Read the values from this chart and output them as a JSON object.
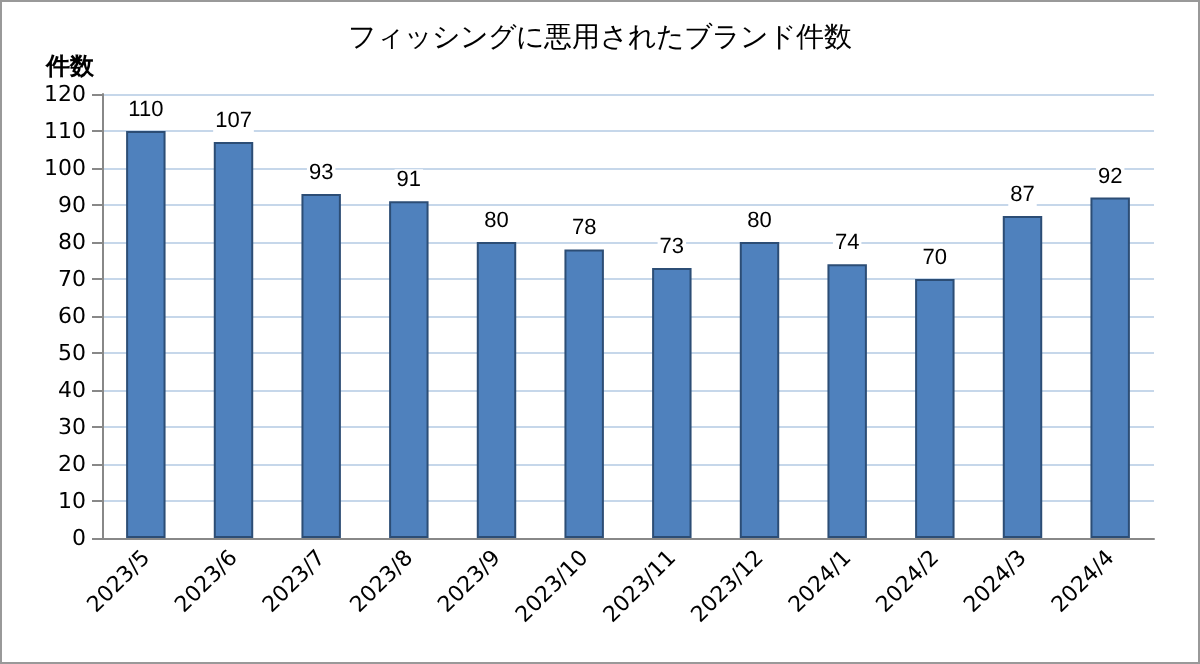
{
  "chart_data": {
    "type": "bar",
    "title": "フィッシングに悪用されたブランド件数",
    "ylabel": "件数",
    "categories": [
      "2023/5",
      "2023/6",
      "2023/7",
      "2023/8",
      "2023/9",
      "2023/10",
      "2023/11",
      "2023/12",
      "2024/1",
      "2024/2",
      "2024/3",
      "2024/4"
    ],
    "values": [
      110,
      107,
      93,
      91,
      80,
      78,
      73,
      80,
      74,
      70,
      87,
      92
    ],
    "color": "#4f81bd",
    "ylim": [
      0,
      120
    ],
    "yticks": [
      0,
      10,
      20,
      30,
      40,
      50,
      60,
      70,
      80,
      90,
      100,
      110,
      120
    ],
    "grid": "y",
    "data_labels": true
  }
}
